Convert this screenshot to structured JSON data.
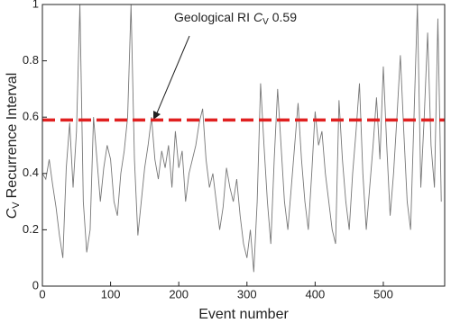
{
  "chart_data": {
    "type": "line",
    "annotation": {
      "text": "Geological RI ",
      "symbol": "C",
      "subscript": "V",
      "value_text": "0.59"
    },
    "xlabel": "Event number",
    "ylabel": {
      "symbol": "C",
      "subscript": "V",
      "text": "Recurrence Interval"
    },
    "x": [
      0,
      5,
      10,
      15,
      20,
      25,
      30,
      35,
      40,
      45,
      50,
      55,
      60,
      65,
      70,
      75,
      80,
      85,
      90,
      95,
      100,
      105,
      110,
      115,
      120,
      125,
      130,
      135,
      140,
      145,
      150,
      155,
      160,
      165,
      170,
      175,
      180,
      185,
      190,
      195,
      200,
      205,
      210,
      215,
      220,
      225,
      230,
      235,
      240,
      245,
      250,
      255,
      260,
      265,
      270,
      275,
      280,
      285,
      290,
      295,
      300,
      305,
      310,
      315,
      320,
      325,
      330,
      335,
      340,
      345,
      350,
      355,
      360,
      365,
      370,
      375,
      380,
      385,
      390,
      395,
      400,
      405,
      410,
      415,
      420,
      425,
      430,
      435,
      440,
      445,
      450,
      455,
      460,
      465,
      470,
      475,
      480,
      485,
      490,
      495,
      500,
      505,
      510,
      515,
      520,
      525,
      530,
      535,
      540,
      545,
      550,
      555,
      560,
      565,
      570,
      575,
      580,
      585
    ],
    "series": [
      {
        "color": "#777777",
        "values": [
          0.4,
          0.38,
          0.45,
          0.36,
          0.28,
          0.18,
          0.1,
          0.42,
          0.58,
          0.35,
          0.55,
          1.0,
          0.3,
          0.12,
          0.2,
          0.6,
          0.45,
          0.3,
          0.42,
          0.5,
          0.45,
          0.3,
          0.25,
          0.4,
          0.48,
          0.6,
          1.0,
          0.45,
          0.18,
          0.3,
          0.42,
          0.5,
          0.6,
          0.45,
          0.38,
          0.48,
          0.42,
          0.5,
          0.35,
          0.55,
          0.42,
          0.48,
          0.3,
          0.4,
          0.45,
          0.5,
          0.58,
          0.63,
          0.45,
          0.35,
          0.4,
          0.3,
          0.2,
          0.28,
          0.42,
          0.35,
          0.3,
          0.38,
          0.25,
          0.15,
          0.1,
          0.2,
          0.05,
          0.3,
          0.72,
          0.5,
          0.3,
          0.15,
          0.45,
          0.7,
          0.5,
          0.3,
          0.2,
          0.35,
          0.5,
          0.65,
          0.45,
          0.3,
          0.2,
          0.4,
          0.62,
          0.5,
          0.55,
          0.4,
          0.3,
          0.2,
          0.15,
          0.66,
          0.45,
          0.3,
          0.2,
          0.4,
          0.55,
          0.72,
          0.4,
          0.2,
          0.35,
          0.5,
          0.67,
          0.45,
          0.78,
          0.5,
          0.25,
          0.4,
          0.6,
          0.82,
          0.55,
          0.3,
          0.2,
          0.6,
          1.0,
          0.35,
          0.6,
          0.9,
          0.5,
          0.35,
          0.95,
          0.3
        ]
      }
    ],
    "reference_line": {
      "value": 0.59,
      "color": "#e02020"
    },
    "xlim": [
      0,
      590
    ],
    "ylim": [
      0,
      1
    ],
    "xticks": [
      0,
      100,
      200,
      300,
      400,
      500
    ],
    "yticks": [
      0,
      0.2,
      0.4,
      0.6,
      0.8,
      1
    ]
  }
}
